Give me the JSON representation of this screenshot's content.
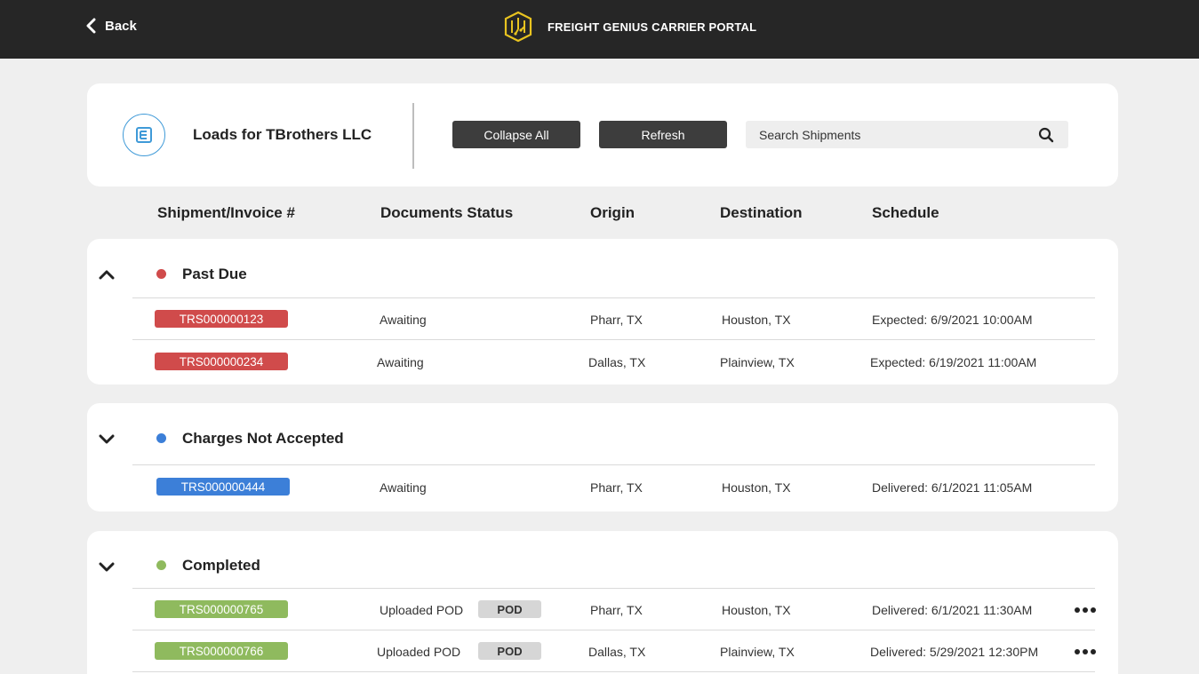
{
  "topbar": {
    "back_label": "Back",
    "brand_title": "FREIGHT GENIUS CARRIER PORTAL"
  },
  "header": {
    "title": "Loads for TBrothers LLC",
    "collapse_label": "Collapse All",
    "refresh_label": "Refresh",
    "search_placeholder": "Search Shipments"
  },
  "columns": {
    "shipment": "Shipment/Invoice #",
    "documents": "Documents Status",
    "origin": "Origin",
    "destination": "Destination",
    "schedule": "Schedule"
  },
  "colors": {
    "past_due": "#d04b4b",
    "charges": "#3c7fd8",
    "completed": "#8fba5e",
    "brand_accent": "#e8c320",
    "topbar": "#262626"
  },
  "groups": {
    "past_due": {
      "title": "Past Due",
      "expanded": true,
      "rows": [
        {
          "id": "TRS000000123",
          "status": "Awaiting",
          "origin": "Pharr, TX",
          "destination": "Houston, TX",
          "schedule": "Expected: 6/9/2021  10:00AM"
        },
        {
          "id": "TRS000000234",
          "status": "Awaiting",
          "origin": "Dallas, TX",
          "destination": "Plainview, TX",
          "schedule": "Expected: 6/19/2021  11:00AM"
        }
      ]
    },
    "charges": {
      "title": "Charges Not Accepted",
      "expanded": false,
      "rows": [
        {
          "id": "TRS000000444",
          "status": "Awaiting",
          "origin": "Pharr, TX",
          "destination": "Houston, TX",
          "schedule": "Delivered: 6/1/2021 11:05AM"
        }
      ]
    },
    "completed": {
      "title": "Completed",
      "expanded": false,
      "rows": [
        {
          "id": "TRS000000765",
          "status": "Uploaded POD",
          "badge": "POD",
          "origin": "Pharr, TX",
          "destination": "Houston, TX",
          "schedule": "Delivered: 6/1/2021 11:30AM"
        },
        {
          "id": "TRS000000766",
          "status": "Uploaded POD",
          "badge": "POD",
          "origin": "Dallas, TX",
          "destination": "Plainview, TX",
          "schedule": "Delivered: 5/29/2021  12:30PM"
        }
      ]
    }
  }
}
